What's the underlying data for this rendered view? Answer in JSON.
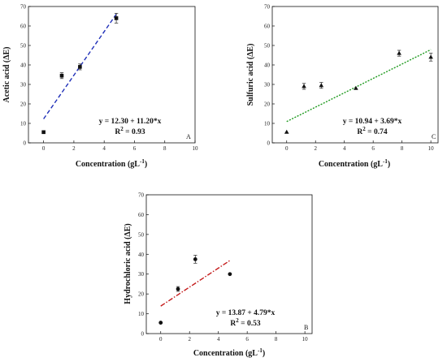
{
  "chart_data": [
    {
      "panel": "A",
      "type": "scatter",
      "ylabel": "Acetic acid (ΔE)",
      "xlabel": "Concentration (gL",
      "xlabel_sup": "-1",
      "xlabel_tail": ")",
      "xlim": [
        -1,
        10
      ],
      "ylim": [
        0,
        70
      ],
      "xticks": [
        0,
        2,
        4,
        6,
        8,
        10
      ],
      "yticks": [
        0,
        10,
        20,
        30,
        40,
        50,
        60,
        70
      ],
      "marker": "square",
      "points": [
        {
          "x": 0,
          "y": 5.5,
          "err": 0
        },
        {
          "x": 1.2,
          "y": 34.5,
          "err": 1.5
        },
        {
          "x": 2.4,
          "y": 39,
          "err": 1.5
        },
        {
          "x": 4.8,
          "y": 64,
          "err": 2.5
        }
      ],
      "fit": {
        "intercept": 12.3,
        "slope": 11.2,
        "x_range": [
          0,
          4.8
        ],
        "color": "#1f2fb8",
        "dash": "dashed"
      },
      "equation": "y = 12.30 + 11.20*x",
      "r2_label": "R",
      "r2_sup": "2",
      "r2_value": " = 0.93"
    },
    {
      "panel": "C",
      "type": "scatter",
      "ylabel": "Sulfuric acid (ΔE)",
      "xlabel": "Concentration (gL",
      "xlabel_sup": "-1",
      "xlabel_tail": ")",
      "xlim": [
        -1,
        10.5
      ],
      "ylim": [
        0,
        70
      ],
      "xticks": [
        0,
        2,
        4,
        6,
        8,
        10
      ],
      "yticks": [
        0,
        10,
        20,
        30,
        40,
        50,
        60,
        70
      ],
      "marker": "triangle",
      "points": [
        {
          "x": 0,
          "y": 5.5,
          "err": 0
        },
        {
          "x": 1.2,
          "y": 29,
          "err": 1.5
        },
        {
          "x": 2.4,
          "y": 29.5,
          "err": 1.5
        },
        {
          "x": 4.8,
          "y": 28,
          "err": 0
        },
        {
          "x": 7.8,
          "y": 46,
          "err": 1.5
        },
        {
          "x": 10,
          "y": 44,
          "err": 2
        }
      ],
      "fit": {
        "intercept": 10.94,
        "slope": 3.69,
        "x_range": [
          0,
          10
        ],
        "color": "#1e9a1e",
        "dash": "dotted"
      },
      "equation": "y = 10.94 + 3.69*x",
      "r2_label": "R",
      "r2_sup": "2",
      "r2_value": " = 0.74"
    },
    {
      "panel": "B",
      "type": "scatter",
      "ylabel": "Hydrochloric acid (ΔE)",
      "xlabel": "Concentration (gL",
      "xlabel_sup": "-1",
      "xlabel_tail": ")",
      "xlim": [
        -1,
        10.5
      ],
      "ylim": [
        0,
        70
      ],
      "xticks": [
        0,
        2,
        4,
        6,
        8,
        10
      ],
      "yticks": [
        0,
        10,
        20,
        30,
        40,
        50,
        60,
        70
      ],
      "marker": "circle",
      "points": [
        {
          "x": 0,
          "y": 5.5,
          "err": 0
        },
        {
          "x": 1.2,
          "y": 22.5,
          "err": 1.2
        },
        {
          "x": 2.4,
          "y": 37.5,
          "err": 2
        },
        {
          "x": 4.8,
          "y": 30,
          "err": 0
        }
      ],
      "fit": {
        "intercept": 13.87,
        "slope": 4.79,
        "x_range": [
          0,
          4.8
        ],
        "color": "#c41a1a",
        "dash": "dashdot"
      },
      "equation": "y = 13.87 + 4.79*x",
      "r2_label": "R",
      "r2_sup": "2",
      "r2_value": " = 0.53"
    }
  ]
}
